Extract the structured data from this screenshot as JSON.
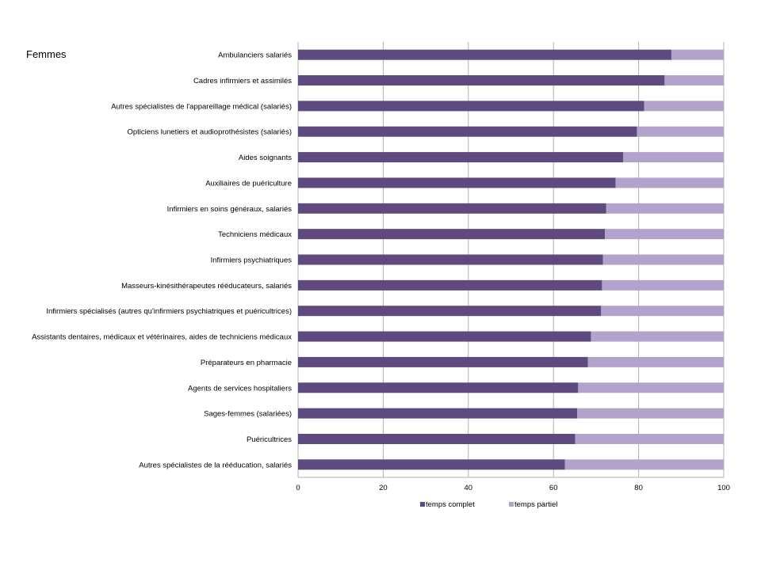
{
  "label": "Femmes",
  "colors": {
    "complet": "#5e4a7f",
    "partiel": "#b3a2cc",
    "grid": "#b0b0b0",
    "text": "#000000"
  },
  "chart_data": {
    "type": "bar",
    "orientation": "horizontal",
    "stacked": true,
    "categories": [
      "Ambulanciers salariés",
      "Cadres infirmiers et assimilés",
      "Autres spécialistes de l'appareillage médical (salariés)",
      "Opticiens lunetiers et audioprothésistes (salariés)",
      "Aides soignants",
      "Auxiliaires de puériculture",
      "Infirmiers en soins généraux, salariés",
      "Techniciens médicaux",
      "Infirmiers psychiatriques",
      "Masseurs-kinésithérapeutes rééducateurs, salariés",
      "Infirmiers spécialisés (autres qu'infirmiers psychiatriques et puéricultrices)",
      "Assistants dentaires, médicaux et vétérinaires, aides de techniciens médicaux",
      "Préparateurs en pharmacie",
      "Agents de services hospitaliers",
      "Sages-femmes (salariées)",
      "Puéricultrices",
      "Autres spécialistes de la rééducation, salariés"
    ],
    "series": [
      {
        "name": "temps complet",
        "values": [
          87.7,
          86.1,
          81.3,
          79.6,
          76.4,
          74.6,
          72.4,
          72.1,
          71.6,
          71.4,
          71.2,
          68.8,
          68.1,
          65.8,
          65.6,
          65.1,
          62.7
        ]
      },
      {
        "name": "temps partiel",
        "values": [
          12.3,
          13.9,
          18.7,
          20.4,
          23.6,
          25.4,
          27.6,
          27.9,
          28.4,
          28.6,
          28.8,
          31.2,
          31.9,
          34.2,
          34.4,
          34.9,
          37.3
        ]
      }
    ],
    "xlim": [
      0,
      100
    ],
    "xticks": [
      0,
      20,
      40,
      60,
      80,
      100
    ],
    "grid": true,
    "legend": "bottom"
  }
}
